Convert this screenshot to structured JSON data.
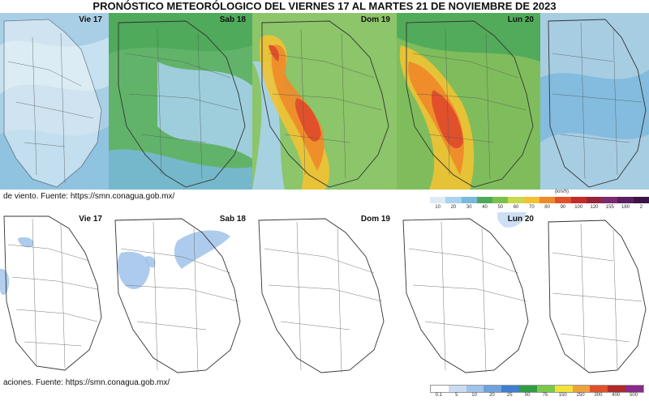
{
  "title": "PRONÓSTICO METEORÓLOGICO DEL VIERNES 17 AL MARTES 21 DE NOVIEMBRE DE 2023",
  "wind": {
    "source": "de viento.  Fuente: https://smn.conagua.gob.mx/",
    "unit": "(km/h)",
    "panels": [
      {
        "label": "Vie 17",
        "bg": "#a9cfe6"
      },
      {
        "label": "Sab 18",
        "bg": "#62b36a"
      },
      {
        "label": "Dom 19",
        "bg": "#8cc56a"
      },
      {
        "label": "Lun 20",
        "bg": "#7fbd5c"
      },
      {
        "label": "",
        "bg": "#a7cde3"
      }
    ],
    "scale": {
      "ticks": [
        "10",
        "20",
        "30",
        "40",
        "50",
        "60",
        "70",
        "80",
        "90",
        "100",
        "120",
        "155",
        "180",
        "2"
      ],
      "colors": [
        "#dcebf5",
        "#a9d2ee",
        "#7ab8dc",
        "#4ea85a",
        "#7cc04a",
        "#c8d94a",
        "#f2c232",
        "#ef8a2a",
        "#e0502a",
        "#c42a2a",
        "#96233a",
        "#7a2a6e",
        "#5a1f5e",
        "#3d1446"
      ]
    }
  },
  "rain": {
    "source": "aciones.  Fuente: https://smn.conagua.gob.mx/",
    "panels": [
      {
        "label": "Vie 17"
      },
      {
        "label": "Sab 18"
      },
      {
        "label": "Dom 19"
      },
      {
        "label": "Lun 20"
      },
      {
        "label": ""
      }
    ],
    "scale": {
      "ticks": [
        "0.1",
        "5",
        "10",
        "20",
        "25",
        "50",
        "75",
        "150",
        "250",
        "300",
        "400",
        "500"
      ],
      "colors": [
        "#ffffff",
        "#c9dcf2",
        "#9fc3ea",
        "#6fa3df",
        "#3e7fd0",
        "#2e9e44",
        "#7cc94a",
        "#f2e23a",
        "#f0a23a",
        "#e0502a",
        "#b02a2a",
        "#8a2a8a"
      ]
    }
  }
}
